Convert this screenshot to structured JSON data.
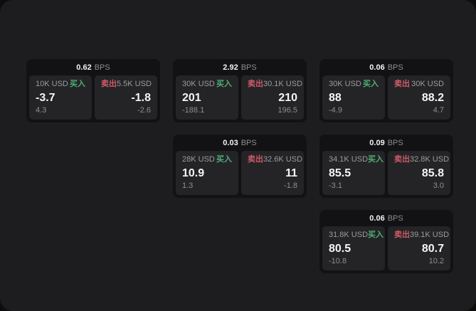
{
  "labels": {
    "bps_unit": "BPS",
    "buy": "买入",
    "sell": "卖出"
  },
  "colors": {
    "panel_background": "#1d1d1f",
    "card_background": "#121214",
    "tile_background": "#242427",
    "buy_accent": "#4fae74",
    "sell_accent": "#cf5a68",
    "text_primary": "#f5f5f6",
    "text_secondary": "#9b9b9f"
  },
  "cards": [
    {
      "bps": "0.62",
      "buy": {
        "notional": "10K USD",
        "price": "-3.7",
        "delta": "4.3"
      },
      "sell": {
        "notional": "5.5K USD",
        "price": "-1.8",
        "delta": "-2.6"
      }
    },
    {
      "bps": "2.92",
      "buy": {
        "notional": "30K USD",
        "price": "201",
        "delta": "-188.1"
      },
      "sell": {
        "notional": "30.1K USD",
        "price": "210",
        "delta": "196.5"
      }
    },
    {
      "bps": "0.06",
      "buy": {
        "notional": "30K USD",
        "price": "88",
        "delta": "-4.9"
      },
      "sell": {
        "notional": "30K USD",
        "price": "88.2",
        "delta": "4.7"
      }
    },
    {
      "bps": "0.03",
      "buy": {
        "notional": "28K USD",
        "price": "10.9",
        "delta": "1.3"
      },
      "sell": {
        "notional": "32.6K USD",
        "price": "11",
        "delta": "-1.8"
      }
    },
    {
      "bps": "0.09",
      "buy": {
        "notional": "34.1K USD",
        "price": "85.5",
        "delta": "-3.1"
      },
      "sell": {
        "notional": "32.8K USD",
        "price": "85.8",
        "delta": "3.0"
      }
    },
    {
      "bps": "0.06",
      "buy": {
        "notional": "31.8K USD",
        "price": "80.5",
        "delta": "-10.8"
      },
      "sell": {
        "notional": "39.1K USD",
        "price": "80.7",
        "delta": "10.2"
      }
    }
  ]
}
